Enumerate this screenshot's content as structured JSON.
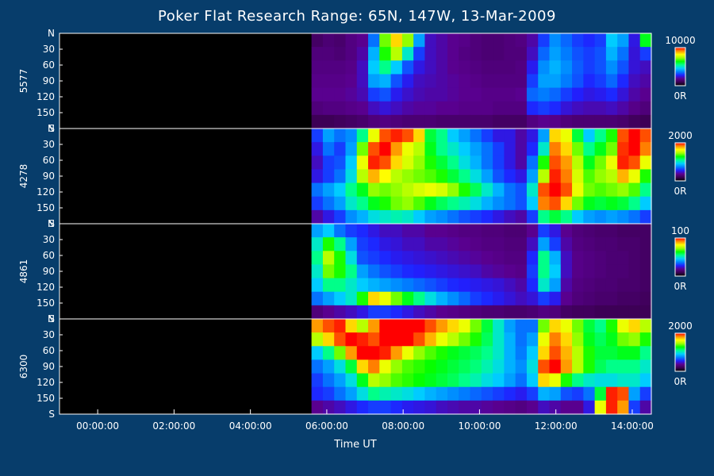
{
  "chart_data": {
    "type": "heatmap",
    "title": "Poker Flat Research Range: 65N, 147W, 13-Mar-2009",
    "xlabel": "Time UT",
    "x_ticks": [
      "00:00:00",
      "02:00:00",
      "04:00:00",
      "06:00:00",
      "08:00:00",
      "10:00:00",
      "12:00:00",
      "14:00:00"
    ],
    "x_range_hours": [
      -1.0,
      14.5
    ],
    "data_start_hour": 5.6,
    "y_ticks": [
      "N",
      "30",
      "60",
      "90",
      "120",
      "150",
      "S"
    ],
    "y_range_degrees": [
      0,
      180
    ],
    "colormap": [
      "#000000",
      "#3a0050",
      "#5a0090",
      "#2020ff",
      "#0080ff",
      "#00d0ff",
      "#00ff90",
      "#00ff00",
      "#a0ff00",
      "#ffff00",
      "#ff9000",
      "#ff0000"
    ],
    "panels": [
      {
        "wavelength": "5577",
        "colorbar_max": "10000",
        "colorbar_min": "0R",
        "levels": [
          [
            0.12,
            0.14,
            0.13,
            0.16,
            0.18,
            0.35,
            0.7,
            0.85,
            0.72,
            0.4,
            0.22,
            0.2,
            0.18,
            0.17,
            0.15,
            0.14,
            0.14,
            0.15,
            0.16,
            0.2,
            0.3,
            0.38,
            0.34,
            0.3,
            0.28,
            0.3,
            0.45,
            0.4,
            0.25,
            0.62
          ],
          [
            0.15,
            0.15,
            0.14,
            0.16,
            0.2,
            0.42,
            0.65,
            0.75,
            0.5,
            0.3,
            0.22,
            0.2,
            0.18,
            0.16,
            0.15,
            0.14,
            0.14,
            0.15,
            0.15,
            0.22,
            0.34,
            0.4,
            0.36,
            0.32,
            0.3,
            0.32,
            0.42,
            0.35,
            0.24,
            0.3
          ],
          [
            0.16,
            0.16,
            0.16,
            0.17,
            0.22,
            0.45,
            0.55,
            0.45,
            0.32,
            0.25,
            0.22,
            0.2,
            0.18,
            0.17,
            0.16,
            0.15,
            0.15,
            0.15,
            0.16,
            0.26,
            0.38,
            0.42,
            0.38,
            0.33,
            0.3,
            0.32,
            0.38,
            0.32,
            0.24,
            0.22
          ],
          [
            0.17,
            0.17,
            0.17,
            0.18,
            0.22,
            0.4,
            0.42,
            0.32,
            0.26,
            0.22,
            0.21,
            0.2,
            0.19,
            0.18,
            0.17,
            0.16,
            0.16,
            0.16,
            0.16,
            0.3,
            0.4,
            0.4,
            0.36,
            0.32,
            0.28,
            0.3,
            0.34,
            0.28,
            0.22,
            0.2
          ],
          [
            0.18,
            0.18,
            0.18,
            0.19,
            0.21,
            0.3,
            0.32,
            0.26,
            0.23,
            0.21,
            0.2,
            0.2,
            0.19,
            0.18,
            0.18,
            0.17,
            0.17,
            0.17,
            0.18,
            0.34,
            0.36,
            0.34,
            0.3,
            0.27,
            0.25,
            0.26,
            0.28,
            0.24,
            0.2,
            0.18
          ],
          [
            0.15,
            0.16,
            0.16,
            0.17,
            0.18,
            0.22,
            0.24,
            0.22,
            0.2,
            0.19,
            0.19,
            0.18,
            0.18,
            0.17,
            0.17,
            0.17,
            0.16,
            0.16,
            0.16,
            0.28,
            0.3,
            0.28,
            0.24,
            0.22,
            0.21,
            0.21,
            0.22,
            0.2,
            0.17,
            0.15
          ],
          [
            0.1,
            0.1,
            0.11,
            0.12,
            0.13,
            0.15,
            0.16,
            0.15,
            0.14,
            0.14,
            0.14,
            0.13,
            0.13,
            0.13,
            0.13,
            0.13,
            0.12,
            0.12,
            0.12,
            0.16,
            0.18,
            0.17,
            0.15,
            0.14,
            0.14,
            0.14,
            0.14,
            0.13,
            0.11,
            0.1
          ]
        ]
      },
      {
        "wavelength": "4278",
        "colorbar_max": "2000",
        "colorbar_min": "0R",
        "levels": [
          [
            0.3,
            0.4,
            0.35,
            0.38,
            0.55,
            0.8,
            0.95,
            0.98,
            0.95,
            0.85,
            0.6,
            0.55,
            0.45,
            0.4,
            0.35,
            0.3,
            0.25,
            0.25,
            0.2,
            0.25,
            0.4,
            0.85,
            0.8,
            0.6,
            0.45,
            0.55,
            0.65,
            0.95,
            1.0,
            0.95
          ],
          [
            0.25,
            0.35,
            0.3,
            0.4,
            0.7,
            0.95,
            1.0,
            0.9,
            0.8,
            0.75,
            0.62,
            0.55,
            0.5,
            0.45,
            0.4,
            0.35,
            0.3,
            0.25,
            0.2,
            0.28,
            0.5,
            0.92,
            0.85,
            0.7,
            0.55,
            0.62,
            0.7,
            0.97,
            1.0,
            0.92
          ],
          [
            0.22,
            0.3,
            0.32,
            0.45,
            0.8,
            0.98,
            0.95,
            0.85,
            0.78,
            0.72,
            0.65,
            0.6,
            0.55,
            0.48,
            0.42,
            0.35,
            0.3,
            0.25,
            0.2,
            0.35,
            0.65,
            0.95,
            0.9,
            0.75,
            0.62,
            0.7,
            0.8,
            0.98,
            0.95,
            0.8
          ],
          [
            0.25,
            0.3,
            0.35,
            0.48,
            0.75,
            0.88,
            0.82,
            0.75,
            0.72,
            0.7,
            0.68,
            0.65,
            0.6,
            0.55,
            0.48,
            0.4,
            0.32,
            0.28,
            0.25,
            0.4,
            0.75,
            0.98,
            0.92,
            0.78,
            0.68,
            0.72,
            0.75,
            0.88,
            0.8,
            0.65
          ],
          [
            0.35,
            0.4,
            0.45,
            0.55,
            0.62,
            0.72,
            0.7,
            0.72,
            0.75,
            0.78,
            0.8,
            0.78,
            0.72,
            0.65,
            0.58,
            0.5,
            0.42,
            0.35,
            0.32,
            0.5,
            0.95,
            1.0,
            0.95,
            0.8,
            0.7,
            0.68,
            0.7,
            0.72,
            0.68,
            0.55
          ],
          [
            0.3,
            0.35,
            0.4,
            0.5,
            0.55,
            0.62,
            0.65,
            0.7,
            0.72,
            0.68,
            0.62,
            0.58,
            0.55,
            0.52,
            0.48,
            0.42,
            0.38,
            0.35,
            0.32,
            0.45,
            0.92,
            0.95,
            0.85,
            0.7,
            0.62,
            0.6,
            0.62,
            0.6,
            0.55,
            0.45
          ],
          [
            0.2,
            0.25,
            0.3,
            0.38,
            0.42,
            0.48,
            0.5,
            0.52,
            0.5,
            0.45,
            0.4,
            0.38,
            0.35,
            0.32,
            0.3,
            0.28,
            0.25,
            0.22,
            0.2,
            0.3,
            0.55,
            0.6,
            0.55,
            0.45,
            0.4,
            0.38,
            0.4,
            0.38,
            0.35,
            0.3
          ]
        ]
      },
      {
        "wavelength": "4861",
        "colorbar_max": "100",
        "colorbar_min": "0R",
        "levels": [
          [
            0.4,
            0.45,
            0.35,
            0.3,
            0.28,
            0.25,
            0.22,
            0.22,
            0.2,
            0.2,
            0.18,
            0.18,
            0.17,
            0.16,
            0.16,
            0.15,
            0.15,
            0.14,
            0.14,
            0.18,
            0.3,
            0.25,
            0.18,
            0.15,
            0.14,
            0.13,
            0.13,
            0.12,
            0.12,
            0.12
          ],
          [
            0.5,
            0.65,
            0.55,
            0.4,
            0.3,
            0.28,
            0.25,
            0.24,
            0.22,
            0.22,
            0.2,
            0.2,
            0.19,
            0.18,
            0.17,
            0.16,
            0.16,
            0.15,
            0.15,
            0.22,
            0.4,
            0.3,
            0.2,
            0.16,
            0.15,
            0.14,
            0.14,
            0.13,
            0.13,
            0.12
          ],
          [
            0.55,
            0.75,
            0.65,
            0.48,
            0.32,
            0.3,
            0.28,
            0.26,
            0.25,
            0.24,
            0.23,
            0.22,
            0.21,
            0.2,
            0.19,
            0.18,
            0.17,
            0.16,
            0.16,
            0.28,
            0.55,
            0.42,
            0.22,
            0.17,
            0.16,
            0.15,
            0.14,
            0.14,
            0.13,
            0.12
          ],
          [
            0.5,
            0.7,
            0.65,
            0.55,
            0.4,
            0.35,
            0.32,
            0.3,
            0.28,
            0.27,
            0.26,
            0.25,
            0.24,
            0.23,
            0.22,
            0.2,
            0.19,
            0.18,
            0.17,
            0.3,
            0.55,
            0.45,
            0.22,
            0.17,
            0.16,
            0.15,
            0.14,
            0.14,
            0.13,
            0.12
          ],
          [
            0.45,
            0.55,
            0.55,
            0.5,
            0.45,
            0.42,
            0.4,
            0.38,
            0.36,
            0.34,
            0.32,
            0.3,
            0.28,
            0.27,
            0.26,
            0.25,
            0.24,
            0.22,
            0.2,
            0.28,
            0.5,
            0.4,
            0.2,
            0.16,
            0.15,
            0.14,
            0.14,
            0.13,
            0.13,
            0.12
          ],
          [
            0.35,
            0.4,
            0.45,
            0.5,
            0.65,
            0.85,
            0.8,
            0.7,
            0.62,
            0.55,
            0.48,
            0.42,
            0.38,
            0.34,
            0.3,
            0.28,
            0.26,
            0.24,
            0.22,
            0.24,
            0.3,
            0.26,
            0.18,
            0.15,
            0.14,
            0.13,
            0.13,
            0.12,
            0.12,
            0.11
          ],
          [
            0.15,
            0.18,
            0.2,
            0.22,
            0.25,
            0.3,
            0.3,
            0.28,
            0.25,
            0.22,
            0.2,
            0.18,
            0.17,
            0.16,
            0.15,
            0.14,
            0.14,
            0.13,
            0.13,
            0.14,
            0.16,
            0.15,
            0.12,
            0.11,
            0.11,
            0.1,
            0.1,
            0.1,
            0.1,
            0.1
          ]
        ]
      },
      {
        "wavelength": "6300",
        "colorbar_max": "2000",
        "colorbar_min": "0R",
        "levels": [
          [
            0.9,
            0.95,
            0.98,
            0.85,
            0.75,
            0.9,
            1.0,
            1.0,
            1.0,
            1.0,
            0.95,
            0.9,
            0.85,
            0.8,
            0.7,
            0.6,
            0.5,
            0.4,
            0.35,
            0.35,
            0.7,
            0.85,
            0.8,
            0.7,
            0.6,
            0.55,
            0.65,
            0.8,
            0.85,
            0.75
          ],
          [
            0.75,
            0.85,
            0.95,
            1.0,
            0.98,
            0.95,
            1.0,
            1.0,
            1.0,
            0.95,
            0.88,
            0.8,
            0.75,
            0.7,
            0.65,
            0.58,
            0.5,
            0.42,
            0.35,
            0.4,
            0.8,
            0.92,
            0.85,
            0.72,
            0.62,
            0.58,
            0.62,
            0.7,
            0.72,
            0.65
          ],
          [
            0.45,
            0.55,
            0.7,
            0.9,
            1.0,
            1.0,
            0.98,
            0.9,
            0.8,
            0.72,
            0.68,
            0.65,
            0.62,
            0.6,
            0.58,
            0.55,
            0.5,
            0.42,
            0.36,
            0.45,
            0.85,
            0.95,
            0.88,
            0.75,
            0.65,
            0.6,
            0.6,
            0.62,
            0.62,
            0.55
          ],
          [
            0.35,
            0.4,
            0.48,
            0.6,
            0.85,
            0.92,
            0.8,
            0.72,
            0.68,
            0.66,
            0.64,
            0.62,
            0.6,
            0.58,
            0.56,
            0.52,
            0.48,
            0.42,
            0.38,
            0.48,
            0.95,
            1.0,
            0.9,
            0.75,
            0.65,
            0.58,
            0.55,
            0.55,
            0.55,
            0.5
          ],
          [
            0.3,
            0.35,
            0.4,
            0.48,
            0.62,
            0.75,
            0.72,
            0.68,
            0.66,
            0.64,
            0.62,
            0.6,
            0.58,
            0.55,
            0.52,
            0.48,
            0.45,
            0.4,
            0.35,
            0.45,
            0.85,
            0.8,
            0.65,
            0.55,
            0.5,
            0.48,
            0.48,
            0.5,
            0.5,
            0.45
          ],
          [
            0.28,
            0.3,
            0.35,
            0.4,
            0.48,
            0.55,
            0.52,
            0.5,
            0.48,
            0.45,
            0.42,
            0.4,
            0.38,
            0.36,
            0.34,
            0.32,
            0.3,
            0.28,
            0.26,
            0.3,
            0.42,
            0.4,
            0.32,
            0.3,
            0.35,
            0.6,
            0.98,
            0.95,
            0.4,
            0.3
          ],
          [
            0.18,
            0.2,
            0.22,
            0.25,
            0.28,
            0.3,
            0.3,
            0.28,
            0.26,
            0.25,
            0.24,
            0.22,
            0.21,
            0.2,
            0.2,
            0.19,
            0.18,
            0.17,
            0.16,
            0.18,
            0.22,
            0.2,
            0.18,
            0.18,
            0.25,
            0.8,
            0.98,
            0.9,
            0.3,
            0.2
          ]
        ]
      }
    ]
  }
}
